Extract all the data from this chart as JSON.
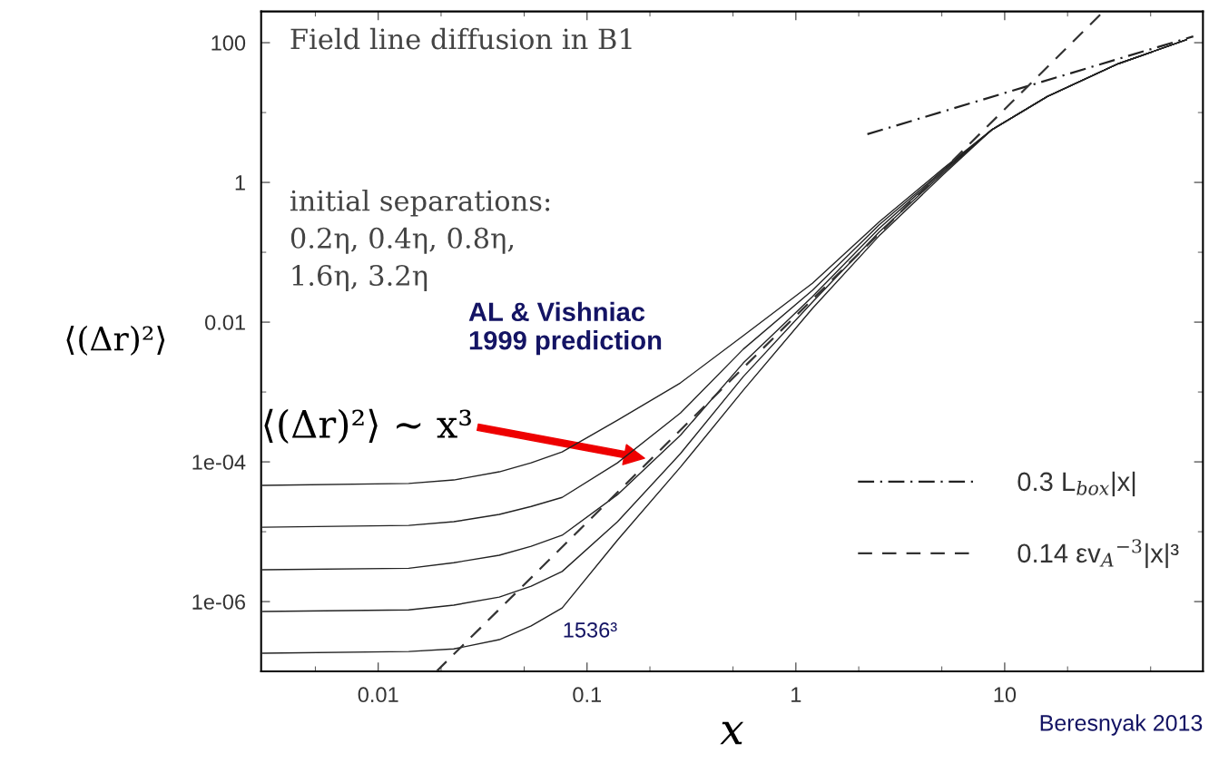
{
  "chart_data": {
    "type": "line",
    "title": "Field line diffusion in B1",
    "xlabel": "x",
    "ylabel": "⟨(Δr)²⟩",
    "log": "xy",
    "grid": false,
    "legend": "lower right",
    "marker": "none",
    "x": [
      0.0028,
      0.014,
      0.023,
      0.038,
      0.054,
      0.076,
      0.14,
      0.28,
      0.56,
      1.2,
      2.5,
      5.1,
      8.7,
      16,
      35,
      74
    ],
    "xlim": [
      0.00275,
      89
    ],
    "ylim": [
      1e-07,
      280
    ],
    "xticks": [
      0.01,
      0.1,
      1,
      10
    ],
    "yticks": [
      {
        "value": 1e-06,
        "label": "1e-06"
      },
      {
        "value": 0.0001,
        "label": "1e-04"
      },
      0.01,
      1,
      100
    ],
    "series": [
      {
        "color": "#222222",
        "line_style": "solid",
        "values": [
          4.6e-05,
          4.9e-05,
          5.5e-05,
          7.2e-05,
          9.7e-05,
          0.000139,
          0.000396,
          0.00135,
          0.0064,
          0.036,
          0.27,
          1.6,
          5.7,
          17,
          50,
          110
        ]
      },
      {
        "color": "#222222",
        "line_style": "solid",
        "values": [
          1.16e-05,
          1.23e-05,
          1.39e-05,
          1.77e-05,
          2.3e-05,
          3.1e-05,
          9.7e-05,
          0.0005,
          0.0041,
          0.0285,
          0.245,
          1.52,
          5.7,
          17,
          50,
          110
        ]
      },
      {
        "color": "#222222",
        "line_style": "solid",
        "values": [
          2.85e-06,
          3e-06,
          3.6e-06,
          4.6e-06,
          6.2e-06,
          8.9e-06,
          3.4e-05,
          0.00024,
          0.0026,
          0.0231,
          0.218,
          1.47,
          5.7,
          17,
          50,
          110
        ]
      },
      {
        "color": "#222222",
        "line_style": "solid",
        "values": [
          7.2e-07,
          7.6e-07,
          8.9e-07,
          1.16e-06,
          1.66e-06,
          2.7e-06,
          1.39e-05,
          0.000131,
          0.00166,
          0.0193,
          0.193,
          1.39,
          5.7,
          17,
          50,
          110
        ]
      },
      {
        "color": "#222222",
        "line_style": "solid",
        "values": [
          1.82e-07,
          1.93e-07,
          2.1e-07,
          2.85e-07,
          4.5e-07,
          8.1e-07,
          7.6e-06,
          8.4e-05,
          0.00106,
          0.0157,
          0.171,
          1.31,
          5.7,
          17,
          50,
          110
        ]
      },
      {
        "name": "0.3 L$_{box}$|x|",
        "color": "#222222",
        "line_style": "dashdot",
        "x": [
          2.2,
          80
        ],
        "values": [
          4.9,
          123
        ]
      },
      {
        "name": "0.14 εv$_{A}$$^{−3}$|x|³",
        "color": "#333333",
        "line_style": "dashed",
        "x": [
          0.019,
          29
        ],
        "values": [
          1e-07,
          260
        ]
      }
    ],
    "annotations": [
      "initial separations:\n0.2η, 0.4η, 0.8η,\n1.6η, 3.2η",
      "AL & Vishniac\n1999 prediction",
      "⟨(Δr)²⟩ ~ x³",
      "1536³",
      "Beresnyak 2013"
    ]
  }
}
